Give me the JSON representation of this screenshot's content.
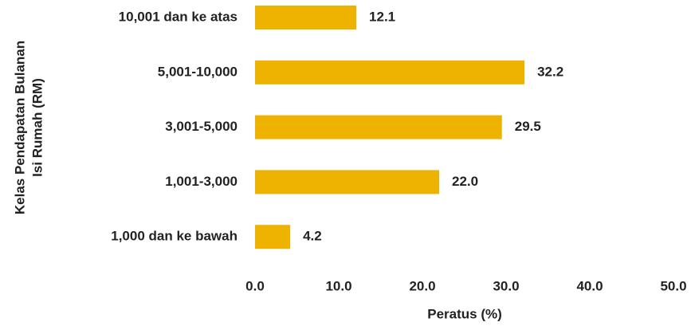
{
  "chart_data": {
    "type": "bar",
    "orientation": "horizontal",
    "categories": [
      "10,001 dan ke atas",
      "5,001-10,000",
      "3,001-5,000",
      "1,001-3,000",
      "1,000 dan ke bawah"
    ],
    "values": [
      12.1,
      32.2,
      29.5,
      22.0,
      4.2
    ],
    "value_labels": [
      "12.1",
      "32.2",
      "29.5",
      "22.0",
      "4.2"
    ],
    "color": "#eeb300",
    "xlim": [
      0,
      50
    ],
    "xticks": [
      {
        "value": 0,
        "label": "0.0"
      },
      {
        "value": 10,
        "label": "10.0"
      },
      {
        "value": 20,
        "label": "20.0"
      },
      {
        "value": 30,
        "label": "30.0"
      },
      {
        "value": 40,
        "label": "40.0"
      },
      {
        "value": 50,
        "label": "50.0"
      }
    ],
    "xlabel": "Peratus (%)",
    "ylabel": [
      "Kelas Pendapatan Bulanan",
      "Isi Rumah (RM)"
    ],
    "grid": false
  }
}
